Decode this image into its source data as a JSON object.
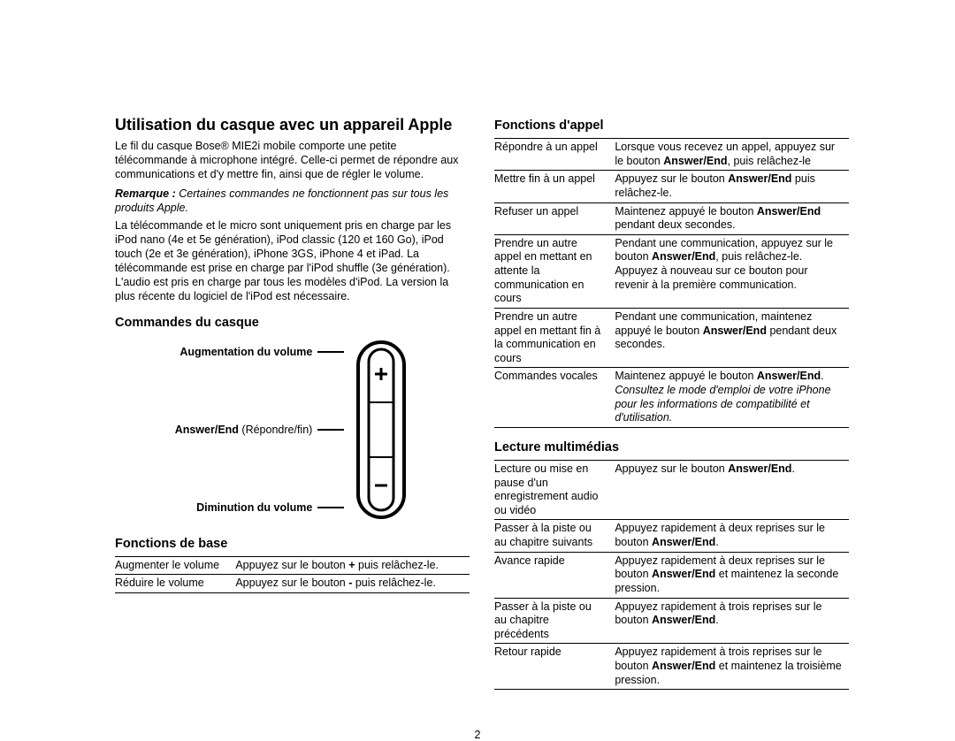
{
  "left": {
    "title": "Utilisation du casque avec un appareil Apple",
    "intro": "Le fil du casque Bose® MIE2i mobile comporte une petite télécommande à microphone intégré. Celle-ci permet de répondre aux communications et d'y mettre fin, ainsi que de régler le volume.",
    "noteLabel": "Remarque :",
    "noteText": " Certaines commandes ne fonctionnent pas sur tous les produits Apple.",
    "support": "La télécommande et le micro sont uniquement pris en charge par les iPod nano (4e et 5e génération), iPod classic (120 et 160 Go), iPod touch (2e et 3e génération), iPhone 3GS, iPhone 4 et iPad. La télécommande est prise en charge par l'iPod shuffle (3e génération). L'audio est pris en charge par tous les modèles d'iPod. La version la plus récente du logiciel de l'iPod est nécessaire.",
    "commandsHeading": "Commandes du casque",
    "remote": {
      "volUp": "Augmentation du volume",
      "answerEnd_b": "Answer/End",
      "answerEnd_r": " (Répondre/fin)",
      "volDown": "Diminution du volume"
    },
    "basicHeading": "Fonctions de base",
    "basic": [
      {
        "a": "Augmenter le volume",
        "b_pre": "Appuyez sur le bouton ",
        "b_b": "+",
        "b_post": " puis relâchez-le."
      },
      {
        "a": "Réduire le volume",
        "b_pre": "Appuyez sur le bouton ",
        "b_b": "-",
        "b_post": " puis relâchez-le."
      }
    ]
  },
  "right": {
    "callHeading": "Fonctions d'appel",
    "call": [
      {
        "a": "Répondre à un appel",
        "pre": "Lorsque vous recevez un appel, appuyez sur le bouton ",
        "b": "Answer/End",
        "post": ", puis relâchez-le"
      },
      {
        "a": "Mettre fin à un appel",
        "pre": "Appuyez sur le bouton ",
        "b": "Answer/End",
        "post": " puis relâchez-le."
      },
      {
        "a": "Refuser un appel",
        "pre": "Maintenez appuyé le bouton ",
        "b": "Answer/End",
        "post": " pendant deux secondes."
      },
      {
        "a": "Prendre un autre appel en mettant en attente la communication en cours",
        "pre": "Pendant une communication, appuyez sur le bouton ",
        "b": "Answer/End",
        "post": ", puis relâchez-le. Appuyez à nouveau sur ce bouton pour revenir à la première communication."
      },
      {
        "a": "Prendre un autre appel en mettant fin à la communication en cours",
        "pre": "Pendant une communication, maintenez appuyé le bouton ",
        "b": "Answer/End",
        "post": " pendant deux secondes."
      },
      {
        "a": "Commandes vocales",
        "pre": "Maintenez appuyé le bouton ",
        "b": "Answer/End",
        "post": ".",
        "note": "Consultez le mode d'emploi de votre iPhone pour les informations de compatibilité et d'utilisation."
      }
    ],
    "mediaHeading": "Lecture multimédias",
    "media": [
      {
        "a": "Lecture ou mise en pause d'un enregistrement audio ou vidéo",
        "pre": "Appuyez sur le bouton ",
        "b": "Answer/End",
        "post": "."
      },
      {
        "a": "Passer à la piste ou au chapitre suivants",
        "pre": "Appuyez rapidement à deux reprises sur le bouton ",
        "b": "Answer/End",
        "post": "."
      },
      {
        "a": "Avance rapide",
        "pre": "Appuyez rapidement à deux reprises sur le bouton ",
        "b": "Answer/End",
        "post": " et maintenez la seconde pression."
      },
      {
        "a": "Passer à la piste ou au chapitre précédents",
        "pre": "Appuyez rapidement à trois reprises sur le bouton ",
        "b": "Answer/End",
        "post": "."
      },
      {
        "a": "Retour rapide",
        "pre": "Appuyez rapidement à trois reprises sur le bouton ",
        "b": "Answer/End",
        "post": " et maintenez la troisième pression."
      }
    ]
  },
  "pageNumber": "2"
}
